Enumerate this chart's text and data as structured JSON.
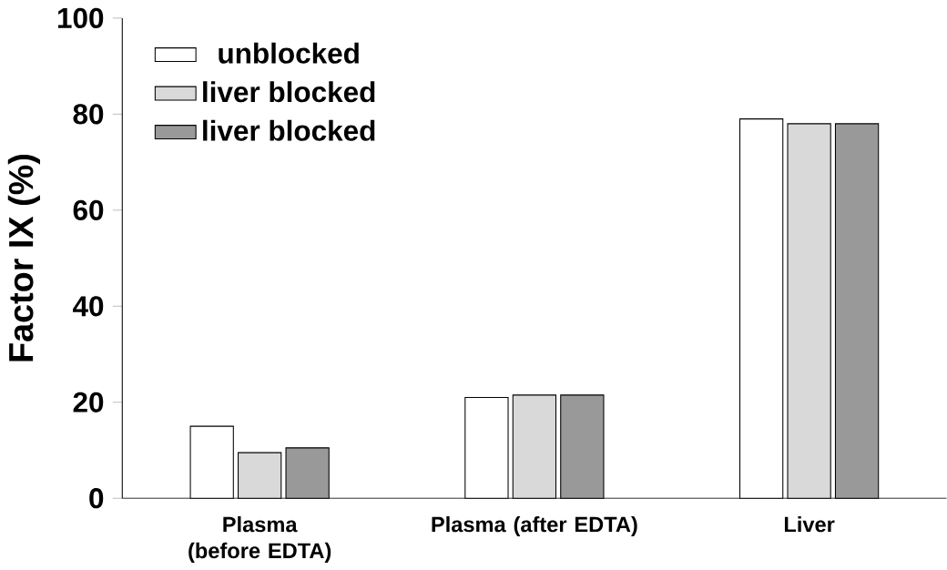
{
  "chart_data": {
    "type": "bar",
    "ylabel": "Factor IX (%)",
    "categories": [
      "Plasma (before EDTA)",
      "Plasma (after EDTA)",
      "Liver"
    ],
    "series": [
      {
        "name": "unblocked",
        "color": "#ffffff",
        "values": [
          15,
          21,
          79
        ]
      },
      {
        "name": "liver blocked",
        "color": "#d9d9d9",
        "values": [
          9.5,
          21.5,
          78
        ]
      },
      {
        "name": "liver blocked",
        "color": "#999999",
        "values": [
          10.5,
          21.5,
          78
        ]
      }
    ],
    "ylim": [
      0,
      100
    ],
    "yticks": [
      0,
      20,
      40,
      60,
      80,
      100
    ],
    "grid": false,
    "legend": "top left"
  }
}
